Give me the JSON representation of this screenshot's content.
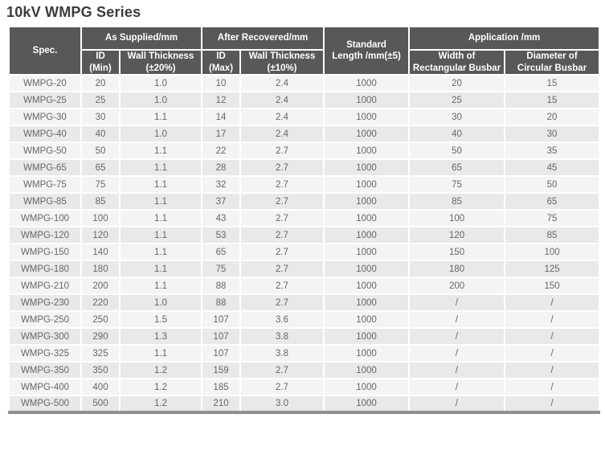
{
  "page_title": "10kV WMPG Series",
  "colors": {
    "header_background": "#595757",
    "header_text": "#ffffff",
    "title_text": "#3e3a39",
    "data_text": "#66666b",
    "row_odd_background": "#f4f4f4",
    "row_even_background": "#e9e9e9",
    "table_bottom_border": "#8f8f91"
  },
  "table": {
    "header": {
      "spec": "Spec.",
      "as_supplied": "As Supplied/mm",
      "after_recovered": "After Recovered/mm",
      "standard_length": "Standard\nLength /mm(±5)",
      "application": "Application /mm",
      "id_min": "ID\n(Min)",
      "wall_thickness_supplied": "Wall Thickness\n(±20%)",
      "id_max": "ID\n(Max)",
      "wall_thickness_recovered": "Wall Thickness\n(±10%)",
      "width_rectangular": "Width of\nRectangular Busbar",
      "diameter_circular": "Diameter of\nCircular Busbar"
    },
    "rows": [
      [
        "WMPG-20",
        "20",
        "1.0",
        "10",
        "2.4",
        "1000",
        "20",
        "15"
      ],
      [
        "WMPG-25",
        "25",
        "1.0",
        "12",
        "2.4",
        "1000",
        "25",
        "15"
      ],
      [
        "WMPG-30",
        "30",
        "1.1",
        "14",
        "2.4",
        "1000",
        "30",
        "20"
      ],
      [
        "WMPG-40",
        "40",
        "1.0",
        "17",
        "2.4",
        "1000",
        "40",
        "30"
      ],
      [
        "WMPG-50",
        "50",
        "1.1",
        "22",
        "2.7",
        "1000",
        "50",
        "35"
      ],
      [
        "WMPG-65",
        "65",
        "1.1",
        "28",
        "2.7",
        "1000",
        "65",
        "45"
      ],
      [
        "WMPG-75",
        "75",
        "1.1",
        "32",
        "2.7",
        "1000",
        "75",
        "50"
      ],
      [
        "WMPG-85",
        "85",
        "1.1",
        "37",
        "2.7",
        "1000",
        "85",
        "65"
      ],
      [
        "WMPG-100",
        "100",
        "1.1",
        "43",
        "2.7",
        "1000",
        "100",
        "75"
      ],
      [
        "WMPG-120",
        "120",
        "1.1",
        "53",
        "2.7",
        "1000",
        "120",
        "85"
      ],
      [
        "WMPG-150",
        "140",
        "1.1",
        "65",
        "2.7",
        "1000",
        "150",
        "100"
      ],
      [
        "WMPG-180",
        "180",
        "1.1",
        "75",
        "2.7",
        "1000",
        "180",
        "125"
      ],
      [
        "WMPG-210",
        "200",
        "1.1",
        "88",
        "2.7",
        "1000",
        "200",
        "150"
      ],
      [
        "WMPG-230",
        "220",
        "1.0",
        "88",
        "2.7",
        "1000",
        "/",
        "/"
      ],
      [
        "WMPG-250",
        "250",
        "1.5",
        "107",
        "3.6",
        "1000",
        "/",
        "/"
      ],
      [
        "WMPG-300",
        "290",
        "1.3",
        "107",
        "3.8",
        "1000",
        "/",
        "/"
      ],
      [
        "WMPG-325",
        "325",
        "1.1",
        "107",
        "3.8",
        "1000",
        "/",
        "/"
      ],
      [
        "WMPG-350",
        "350",
        "1.2",
        "159",
        "2.7",
        "1000",
        "/",
        "/"
      ],
      [
        "WMPG-400",
        "400",
        "1.2",
        "185",
        "2.7",
        "1000",
        "/",
        "/"
      ],
      [
        "WMPG-500",
        "500",
        "1.2",
        "210",
        "3.0",
        "1000",
        "/",
        "/"
      ]
    ]
  }
}
